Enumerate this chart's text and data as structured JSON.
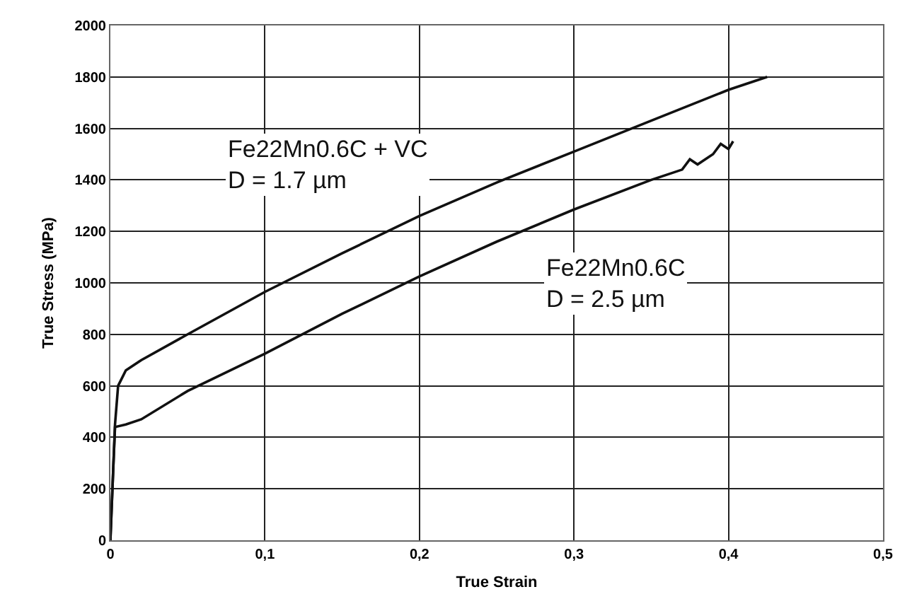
{
  "chart_data": {
    "type": "line",
    "xlabel": "True Strain",
    "ylabel": "True Stress (MPa)",
    "xlim": [
      0,
      0.5
    ],
    "xticks": [
      0,
      {
        "value": 0.1,
        "label": "0,1"
      },
      {
        "value": 0.2,
        "label": "0,2"
      },
      {
        "value": 0.3,
        "label": "0,3"
      },
      {
        "value": 0.4,
        "label": "0,4"
      },
      {
        "value": 0.5,
        "label": "0,5"
      }
    ],
    "ylim": [
      0,
      2000
    ],
    "yticks": [
      0,
      200,
      400,
      600,
      800,
      1000,
      1200,
      1400,
      1600,
      1800,
      2000
    ],
    "grid": true,
    "marker": "none",
    "line_style": "solid",
    "series": [
      {
        "name": "Fe22Mn0.6C + VC\nD = 1.7 µm",
        "color": "#111111",
        "x": [
          0,
          0.003,
          0.005,
          0.01,
          0.02,
          0.05,
          0.1,
          0.15,
          0.2,
          0.25,
          0.3,
          0.35,
          0.4,
          0.425
        ],
        "values": [
          0,
          450,
          600,
          660,
          700,
          800,
          965,
          1115,
          1260,
          1390,
          1510,
          1630,
          1750,
          1800
        ]
      },
      {
        "name": "Fe22Mn0.6C\nD = 2.5 µm",
        "color": "#111111",
        "x": [
          0,
          0.002,
          0.003,
          0.01,
          0.02,
          0.05,
          0.1,
          0.15,
          0.2,
          0.25,
          0.3,
          0.35,
          0.37,
          0.375,
          0.38,
          0.39,
          0.395,
          0.4,
          0.403
        ],
        "values": [
          0,
          300,
          440,
          450,
          470,
          580,
          725,
          880,
          1025,
          1160,
          1285,
          1400,
          1440,
          1480,
          1460,
          1500,
          1540,
          1520,
          1550
        ]
      }
    ],
    "legend": false
  }
}
